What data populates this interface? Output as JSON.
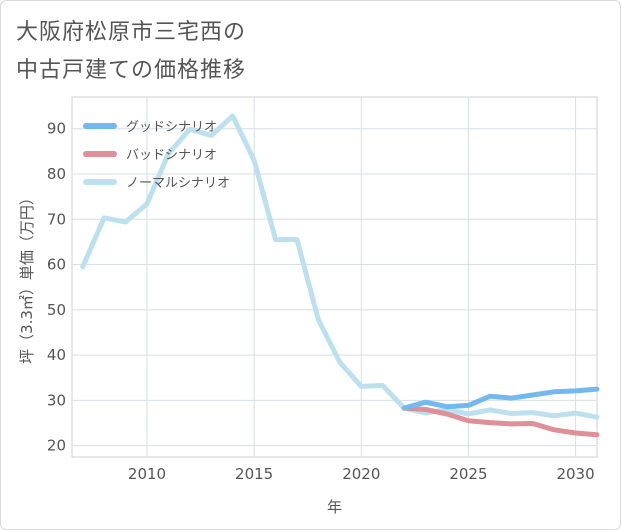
{
  "title_lines": [
    "大阪府松原市三宅西の",
    "中古戸建ての価格推移"
  ],
  "chart_data": {
    "type": "line",
    "title": "大阪府松原市三宅西の中古戸建ての価格推移",
    "xlabel": "年",
    "ylabel": "坪（3.3㎡）単価（万円）",
    "xlim": [
      2006.5,
      2031
    ],
    "ylim": [
      17.5,
      97
    ],
    "xticks": [
      2010,
      2015,
      2020,
      2025,
      2030
    ],
    "yticks": [
      20,
      30,
      40,
      50,
      60,
      70,
      80,
      90
    ],
    "grid": true,
    "legend_position": "top-left",
    "series": [
      {
        "name": "グッドシナリオ",
        "color": "#74b9ee",
        "x": [
          2022,
          2023,
          2024,
          2025,
          2026,
          2027,
          2028,
          2029,
          2030,
          2031
        ],
        "y": [
          28.3,
          29.6,
          28.6,
          28.9,
          30.9,
          30.5,
          31.2,
          31.9,
          32.1,
          32.5
        ]
      },
      {
        "name": "バッドシナリオ",
        "color": "#de8f97",
        "x": [
          2022,
          2023,
          2024,
          2025,
          2026,
          2027,
          2028,
          2029,
          2030,
          2031
        ],
        "y": [
          28.3,
          28.0,
          27.0,
          25.5,
          25.1,
          24.8,
          24.9,
          23.5,
          22.8,
          22.4
        ]
      },
      {
        "name": "ノーマルシナリオ",
        "color": "#bde0ee",
        "x": [
          2007,
          2008,
          2009,
          2010,
          2011,
          2012,
          2013,
          2014,
          2015,
          2016,
          2017,
          2018,
          2019,
          2020,
          2021,
          2022,
          2023,
          2024,
          2025,
          2026,
          2027,
          2028,
          2029,
          2030,
          2031
        ],
        "y": [
          59.5,
          70.3,
          69.4,
          73.4,
          84.5,
          89.9,
          88.5,
          92.8,
          83.0,
          65.5,
          65.5,
          47.8,
          38.4,
          33.1,
          33.3,
          28.3,
          27.2,
          28.0,
          27.0,
          27.9,
          27.1,
          27.3,
          26.6,
          27.2,
          26.3
        ]
      }
    ]
  }
}
